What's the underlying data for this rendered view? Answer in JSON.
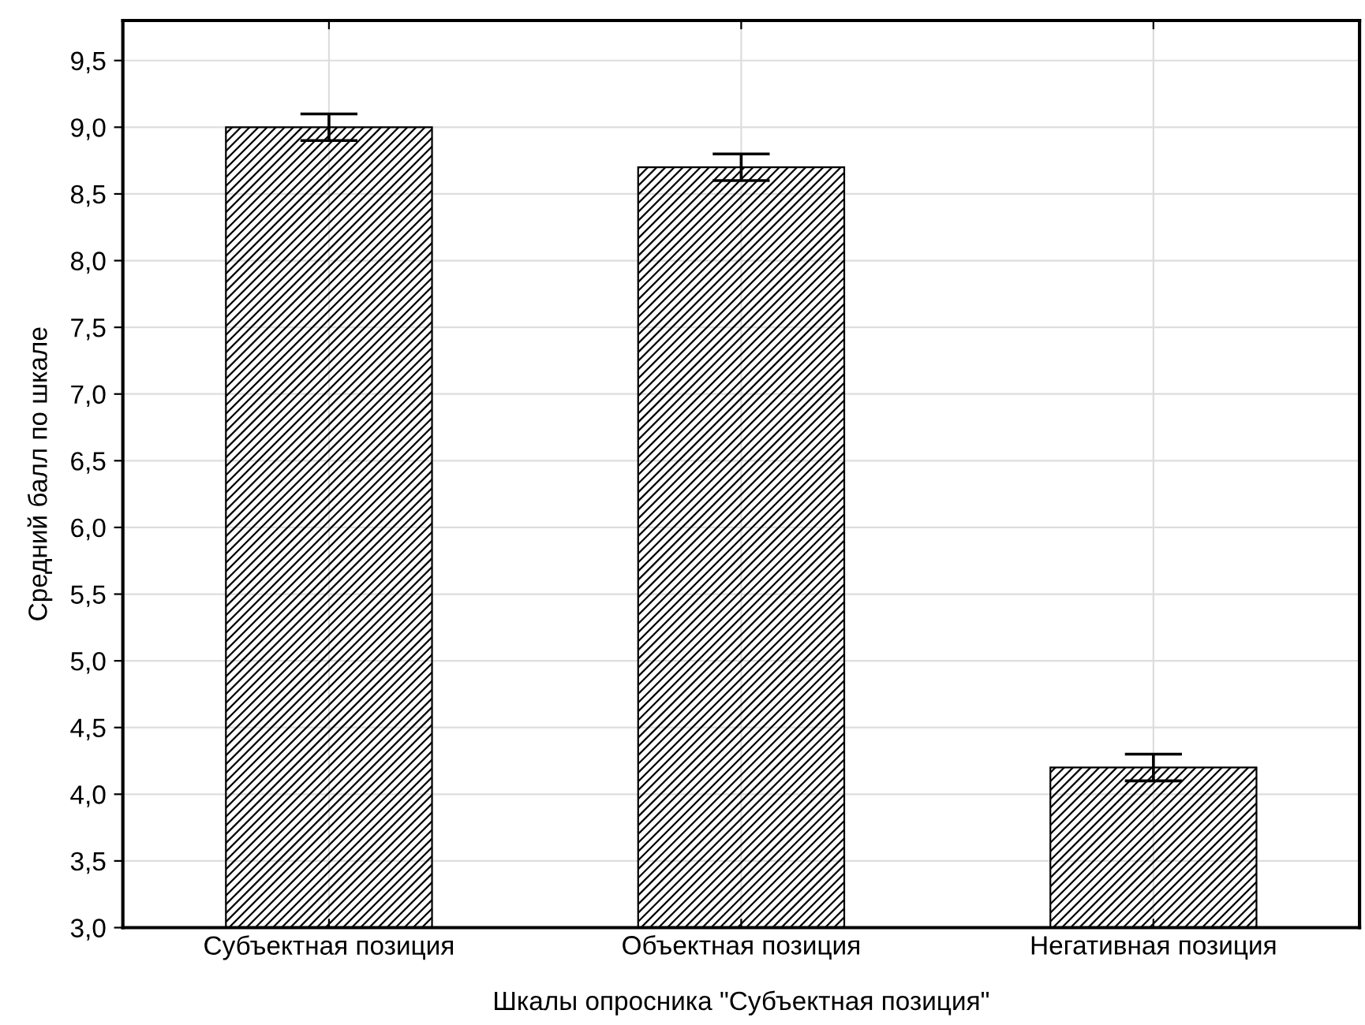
{
  "chart_data": {
    "type": "bar",
    "xlabel": "Шкалы опросника \"Субъектная позиция\"",
    "ylabel": "Средний балл по шкале",
    "categories": [
      "Субъектная позиция",
      "Объектная позиция",
      "Негативная позиция"
    ],
    "values": [
      9.0,
      8.7,
      4.2
    ],
    "errors": [
      0.1,
      0.1,
      0.1
    ],
    "color": "#000000",
    "ylim": [
      3.0,
      9.8
    ],
    "yticks": [
      {
        "value": 3.0,
        "label": "3,0"
      },
      {
        "value": 3.5,
        "label": "3,5"
      },
      {
        "value": 4.0,
        "label": "4,0"
      },
      {
        "value": 4.5,
        "label": "4,5"
      },
      {
        "value": 5.0,
        "label": "5,0"
      },
      {
        "value": 5.5,
        "label": "5,5"
      },
      {
        "value": 6.0,
        "label": "6,0"
      },
      {
        "value": 6.5,
        "label": "6,5"
      },
      {
        "value": 7.0,
        "label": "7,0"
      },
      {
        "value": 7.5,
        "label": "7,5"
      },
      {
        "value": 8.0,
        "label": "8,0"
      },
      {
        "value": 8.5,
        "label": "8,5"
      },
      {
        "value": 9.0,
        "label": "9,0"
      },
      {
        "value": 9.5,
        "label": "9,5"
      }
    ],
    "grid": true
  }
}
